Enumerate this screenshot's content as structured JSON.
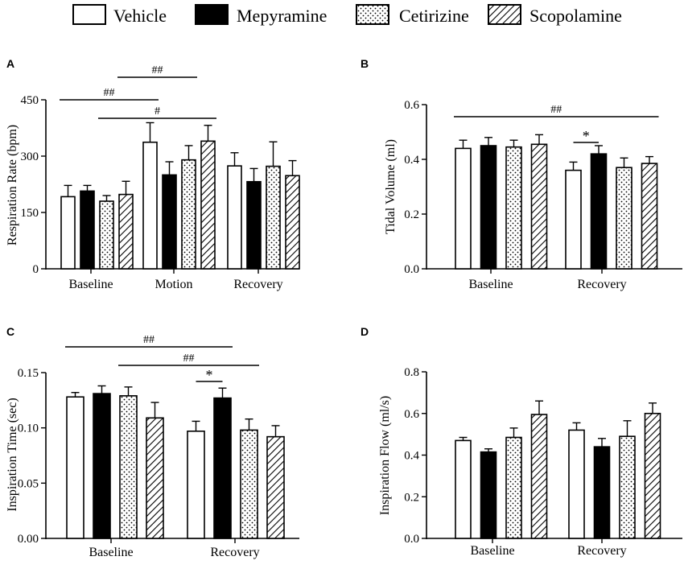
{
  "legend": [
    {
      "name": "Vehicle",
      "fill": "white"
    },
    {
      "name": "Mepyramine",
      "fill": "black"
    },
    {
      "name": "Cetirizine",
      "fill": "dots"
    },
    {
      "name": "Scopolamine",
      "fill": "hatch"
    }
  ],
  "colors": {
    "ink": "#000000",
    "background": "#ffffff"
  },
  "chart_data": [
    {
      "panel": "A",
      "type": "bar",
      "ylabel": "Respiration Rate (bpm)",
      "ylim": [
        0,
        450
      ],
      "yticks": [
        "0",
        "150",
        "300",
        "450"
      ],
      "categories": [
        "Baseline",
        "Motion",
        "Recovery"
      ],
      "series": [
        {
          "name": "Vehicle",
          "values": [
            192,
            337,
            274
          ],
          "errors": [
            30,
            52,
            35
          ]
        },
        {
          "name": "Mepyramine",
          "values": [
            207,
            250,
            232
          ],
          "errors": [
            15,
            35,
            35
          ]
        },
        {
          "name": "Cetirizine",
          "values": [
            180,
            290,
            273
          ],
          "errors": [
            15,
            38,
            65
          ]
        },
        {
          "name": "Scopolamine",
          "values": [
            198,
            340,
            248
          ],
          "errors": [
            35,
            42,
            40
          ]
        }
      ],
      "significance": [
        {
          "label": "##",
          "from": [
            0,
            0
          ],
          "to": [
            1,
            0
          ]
        },
        {
          "label": "##",
          "from": [
            0,
            3
          ],
          "to": [
            1,
            2
          ]
        },
        {
          "label": "#",
          "from": [
            0,
            2
          ],
          "to": [
            1,
            3
          ]
        }
      ]
    },
    {
      "panel": "B",
      "type": "bar",
      "ylabel": "Tidal Volume (ml)",
      "ylim": [
        0,
        0.6
      ],
      "yticks": [
        "0.0",
        "0.2",
        "0.4",
        "0.6"
      ],
      "categories": [
        "Baseline",
        "Recovery"
      ],
      "series": [
        {
          "name": "Vehicle",
          "values": [
            0.44,
            0.36
          ],
          "errors": [
            0.03,
            0.03
          ]
        },
        {
          "name": "Mepyramine",
          "values": [
            0.45,
            0.42
          ],
          "errors": [
            0.03,
            0.03
          ]
        },
        {
          "name": "Cetirizine",
          "values": [
            0.445,
            0.37
          ],
          "errors": [
            0.025,
            0.035
          ]
        },
        {
          "name": "Scopolamine",
          "values": [
            0.455,
            0.385
          ],
          "errors": [
            0.035,
            0.025
          ]
        }
      ],
      "significance": [
        {
          "label": "##",
          "from": [
            0,
            0
          ],
          "to": [
            1,
            3
          ]
        },
        {
          "label": "*",
          "from": [
            1,
            0
          ],
          "to": [
            1,
            1
          ]
        }
      ]
    },
    {
      "panel": "C",
      "type": "bar",
      "ylabel": "Inspiration Time (sec)",
      "ylim": [
        0,
        0.15
      ],
      "yticks": [
        "0.00",
        "0.05",
        "0.10",
        "0.15"
      ],
      "categories": [
        "Baseline",
        "Recovery"
      ],
      "series": [
        {
          "name": "Vehicle",
          "values": [
            0.128,
            0.097
          ],
          "errors": [
            0.004,
            0.009
          ]
        },
        {
          "name": "Mepyramine",
          "values": [
            0.131,
            0.127
          ],
          "errors": [
            0.007,
            0.009
          ]
        },
        {
          "name": "Cetirizine",
          "values": [
            0.129,
            0.098
          ],
          "errors": [
            0.008,
            0.01
          ]
        },
        {
          "name": "Scopolamine",
          "values": [
            0.109,
            0.092
          ],
          "errors": [
            0.014,
            0.01
          ]
        }
      ],
      "significance": [
        {
          "label": "##",
          "from": [
            0,
            0
          ],
          "to": [
            1,
            1
          ]
        },
        {
          "label": "##",
          "from": [
            0,
            2
          ],
          "to": [
            1,
            2
          ]
        },
        {
          "label": "*",
          "from": [
            1,
            0
          ],
          "to": [
            1,
            1
          ]
        }
      ]
    },
    {
      "panel": "D",
      "type": "bar",
      "ylabel": "Inspiration Flow (ml/s)",
      "ylim": [
        0,
        0.8
      ],
      "yticks": [
        "0.0",
        "0.2",
        "0.4",
        "0.6",
        "0.8"
      ],
      "categories": [
        "Baseline",
        "Recovery"
      ],
      "series": [
        {
          "name": "Vehicle",
          "values": [
            0.47,
            0.52
          ],
          "errors": [
            0.015,
            0.035
          ]
        },
        {
          "name": "Mepyramine",
          "values": [
            0.415,
            0.44
          ],
          "errors": [
            0.015,
            0.04
          ]
        },
        {
          "name": "Cetirizine",
          "values": [
            0.485,
            0.49
          ],
          "errors": [
            0.045,
            0.075
          ]
        },
        {
          "name": "Scopolamine",
          "values": [
            0.595,
            0.6
          ],
          "errors": [
            0.065,
            0.05
          ]
        }
      ],
      "significance": []
    }
  ]
}
